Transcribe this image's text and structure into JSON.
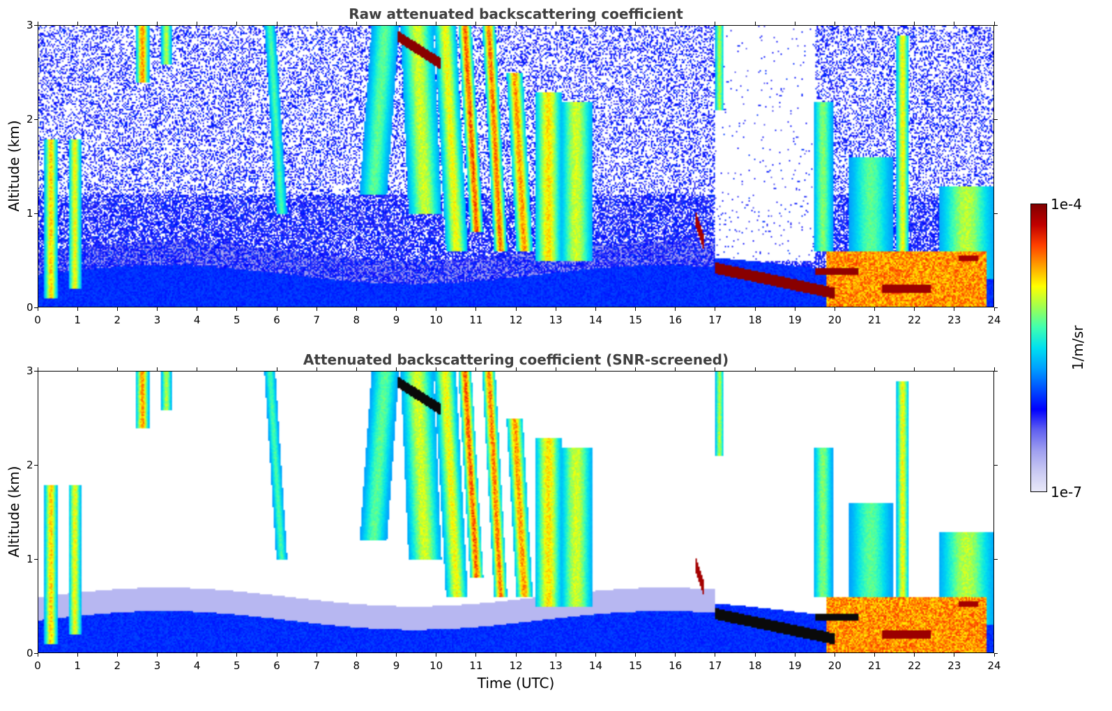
{
  "colors": {
    "background": "#ffffff",
    "title": "#404040",
    "colormap": [
      "#e8e8f8",
      "#c8c8f2",
      "#9e9ef0",
      "#6060f0",
      "#0000ff",
      "#0050ff",
      "#00a0ff",
      "#00e0f0",
      "#40ffb0",
      "#a0ff50",
      "#ffff00",
      "#ffa000",
      "#ff4000",
      "#c00000",
      "#800000"
    ]
  },
  "chart_data": [
    {
      "type": "heatmap",
      "title": "Raw attenuated backscattering coefficient",
      "xlabel": "",
      "ylabel": "Altitude (km)",
      "xlim": [
        0,
        24
      ],
      "ylim": [
        0,
        3
      ],
      "xticks": [
        "0",
        "1",
        "2",
        "3",
        "4",
        "5",
        "6",
        "7",
        "8",
        "9",
        "10",
        "11",
        "12",
        "13",
        "14",
        "15",
        "16",
        "17",
        "18",
        "19",
        "20",
        "21",
        "22",
        "23",
        "24"
      ],
      "yticks": [
        "0",
        "1",
        "2",
        "3"
      ],
      "screened": false
    },
    {
      "type": "heatmap",
      "title": "Attenuated backscattering coefficient (SNR-screened)",
      "xlabel": "Time (UTC)",
      "ylabel": "Altitude (km)",
      "xlim": [
        0,
        24
      ],
      "ylim": [
        0,
        3
      ],
      "xticks": [
        "0",
        "1",
        "2",
        "3",
        "4",
        "5",
        "6",
        "7",
        "8",
        "9",
        "10",
        "11",
        "12",
        "13",
        "14",
        "15",
        "16",
        "17",
        "18",
        "19",
        "20",
        "21",
        "22",
        "23",
        "24"
      ],
      "yticks": [
        "0",
        "1",
        "2",
        "3"
      ],
      "screened": true
    }
  ],
  "colorbar": {
    "max_label": "1e-4",
    "min_label": "1e-7",
    "unit_label": "1/m/sr",
    "log_range": [
      -7,
      -4
    ]
  }
}
